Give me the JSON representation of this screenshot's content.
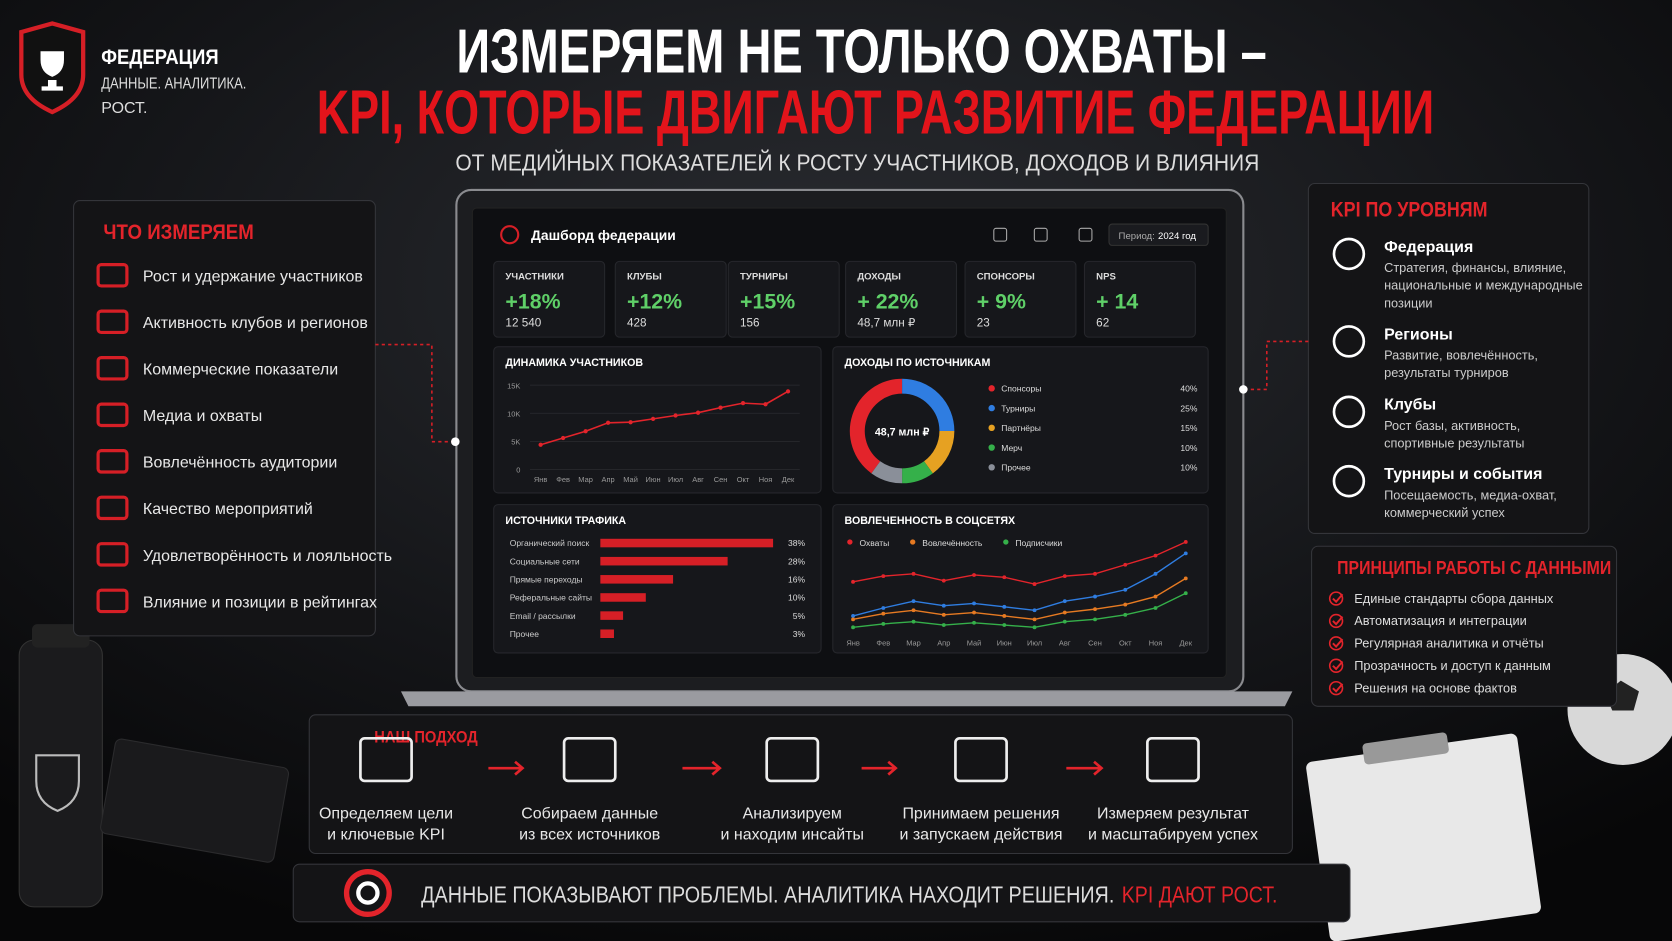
{
  "header": {
    "brand": "ФЕДЕРАЦИЯ",
    "tagline": [
      "ДАННЫЕ. АНАЛИТИКА.",
      "РОСТ."
    ],
    "title": "ИЗМЕРЯЕМ НЕ ТОЛЬКО ОХВАТЫ –",
    "title_accent": "KPI, КОТОРЫЕ ДВИГАЮТ РАЗВИТИЕ ФЕДЕРАЦИИ",
    "subtitle": "ОТ МЕДИЙНЫХ ПОКАЗАТЕЛЕЙ К РОСТУ УЧАСТНИКОВ, ДОХОДОВ И ВЛИЯНИЯ"
  },
  "measure": {
    "title": "ЧТО ИЗМЕРЯЕМ",
    "items": [
      "Рост и удержание участников",
      "Активность клубов и регионов",
      "Коммерческие показатели",
      "Медиа и охваты",
      "Вовлечённость аудитории",
      "Качество мероприятий",
      "Удовлетворённость и лояльность",
      "Влияние и позиции в рейтингах"
    ]
  },
  "dashboard": {
    "title": "Дашборд федерации",
    "period_label": "Период:",
    "period": "2024 год",
    "kpis": [
      {
        "label": "УЧАСТНИКИ",
        "change": "+18%",
        "total": "12 540"
      },
      {
        "label": "КЛУБЫ",
        "change": "+12%",
        "total": "428"
      },
      {
        "label": "ТУРНИРЫ",
        "change": "+15%",
        "total": "156"
      },
      {
        "label": "ДОХОДЫ",
        "change": "+ 22%",
        "total": "48,7 млн ₽"
      },
      {
        "label": "СПОНСОРЫ",
        "change": "+ 9%",
        "total": "23"
      },
      {
        "label": "NPS",
        "change": "+ 14",
        "total": "62"
      }
    ],
    "participants": {
      "type": "line",
      "title": "ДИНАМИКА УЧАСТНИКОВ",
      "categories": [
        "Янв",
        "Фев",
        "Мар",
        "Апр",
        "Май",
        "Июн",
        "Июл",
        "Авг",
        "Сен",
        "Окт",
        "Ноя",
        "Дек"
      ],
      "values": [
        4400,
        5600,
        6800,
        8300,
        8400,
        9000,
        9600,
        10100,
        11000,
        11800,
        11600,
        13900
      ],
      "color": "#e3242b",
      "ylim": [
        0,
        15000
      ],
      "yticks": [
        0,
        {
          "value": 5000,
          "label": "5K"
        },
        {
          "value": 10000,
          "label": "10K"
        },
        {
          "value": 15000,
          "label": "15K"
        }
      ],
      "grid": true
    },
    "revenue": {
      "type": "pie",
      "title": "ДОХОДЫ ПО ИСТОЧНИКАМ",
      "center_label": "48,7 млн ₽",
      "categories": [
        "Спонсоры",
        "Турниры",
        "Партнёры",
        "Мерч",
        "Прочее"
      ],
      "values": [
        40,
        25,
        15,
        10,
        10
      ],
      "value_labels": [
        "40%",
        "25%",
        "15%",
        "10%",
        "10%"
      ],
      "colors": [
        "#e3242b",
        "#2f7de1",
        "#e6a122",
        "#35b04a",
        "#8a8f99"
      ]
    },
    "traffic": {
      "type": "bar",
      "title": "ИСТОЧНИКИ ТРАФИКА",
      "categories": [
        "Органический поиск",
        "Социальные сети",
        "Прямые переходы",
        "Реферальные сайты",
        "Email / рассылки",
        "Прочее"
      ],
      "values": [
        38,
        28,
        16,
        10,
        5,
        3
      ],
      "value_labels": [
        "38%",
        "28%",
        "16%",
        "10%",
        "5%",
        "3%"
      ],
      "color": "#d61f26"
    },
    "social": {
      "type": "line",
      "title": "ВОВЛЕЧЕННОСТЬ В СОЦСЕТЯХ",
      "categories": [
        "Янв",
        "Фев",
        "Мар",
        "Апр",
        "Май",
        "Июн",
        "Июл",
        "Авг",
        "Сен",
        "Окт",
        "Ноя",
        "Дек"
      ],
      "series": [
        {
          "name": "Охваты",
          "color": "#e3242b",
          "values": [
            55,
            60,
            62,
            56,
            61,
            59,
            53,
            60,
            62,
            70,
            78,
            90
          ]
        },
        {
          "color": "#2f7de1",
          "values": [
            25,
            32,
            38,
            34,
            36,
            33,
            30,
            38,
            42,
            48,
            62,
            80
          ]
        },
        {
          "name": "Вовлечённость",
          "color": "#e67a22",
          "values": [
            22,
            27,
            30,
            26,
            28,
            25,
            22,
            28,
            31,
            35,
            42,
            58
          ]
        },
        {
          "name": "Подписчики",
          "color": "#35b04a",
          "values": [
            15,
            18,
            20,
            17,
            19,
            17,
            15,
            20,
            22,
            26,
            32,
            45
          ]
        }
      ]
    }
  },
  "levels": {
    "title": "KPI ПО УРОВНЯМ",
    "items": [
      {
        "title": "Федерация",
        "desc": [
          "Стратегия, финансы, влияние,",
          "национальные и международные",
          "позиции"
        ]
      },
      {
        "title": "Регионы",
        "desc": [
          "Развитие, вовлечённость,",
          "результаты турниров"
        ]
      },
      {
        "title": "Клубы",
        "desc": [
          "Рост базы, активность,",
          "спортивные результаты"
        ]
      },
      {
        "title": "Турниры и события",
        "desc": [
          "Посещаемость, медиа-охват,",
          "коммерческий успех"
        ]
      }
    ]
  },
  "principles": {
    "title": "ПРИНЦИПЫ РАБОТЫ С ДАННЫМИ",
    "items": [
      "Единые стандарты сбора данных",
      "Автоматизация и интеграции",
      "Регулярная аналитика и отчёты",
      "Прозрачность и доступ к данным",
      "Решения на основе фактов"
    ]
  },
  "approach": {
    "title": "НАШ ПОДХОД",
    "steps": [
      [
        "Определяем цели",
        "и ключевые KPI"
      ],
      [
        "Собираем данные",
        "из всех источников"
      ],
      [
        "Анализируем",
        "и находим инсайты"
      ],
      [
        "Принимаем решения",
        "и запускаем действия"
      ],
      [
        "Измеряем результат",
        "и масштабируем успех"
      ]
    ]
  },
  "footer": {
    "text": "ДАННЫЕ ПОКАЗЫВАЮТ ПРОБЛЕМЫ. АНАЛИТИКА НАХОДИТ РЕШЕНИЯ.",
    "accent": "KPI ДАЮТ РОСТ."
  }
}
